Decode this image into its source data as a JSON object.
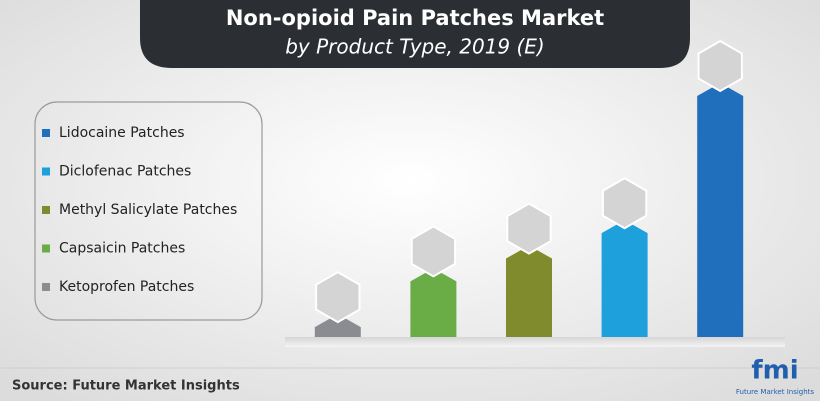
{
  "chart_data": {
    "type": "bar",
    "title": "Non-opioid Pain Patches Market",
    "subtitle": "by Product Type, 2019 (E)",
    "categories": [
      "Ketoprofen Patches",
      "Capsaicin Patches",
      "Methyl Salicylate Patches",
      "Diclofenac Patches",
      "Lidocaine Patches"
    ],
    "values": [
      9,
      27,
      36,
      46,
      100
    ],
    "colors": [
      "#8a8c91",
      "#6aac45",
      "#7f8b2c",
      "#1ea0dc",
      "#1f6fbd"
    ],
    "ylim": [
      0,
      100
    ],
    "source": "Source: Future Market Insights",
    "logo": "fmi",
    "logo_tagline": "Future Market Insights"
  }
}
